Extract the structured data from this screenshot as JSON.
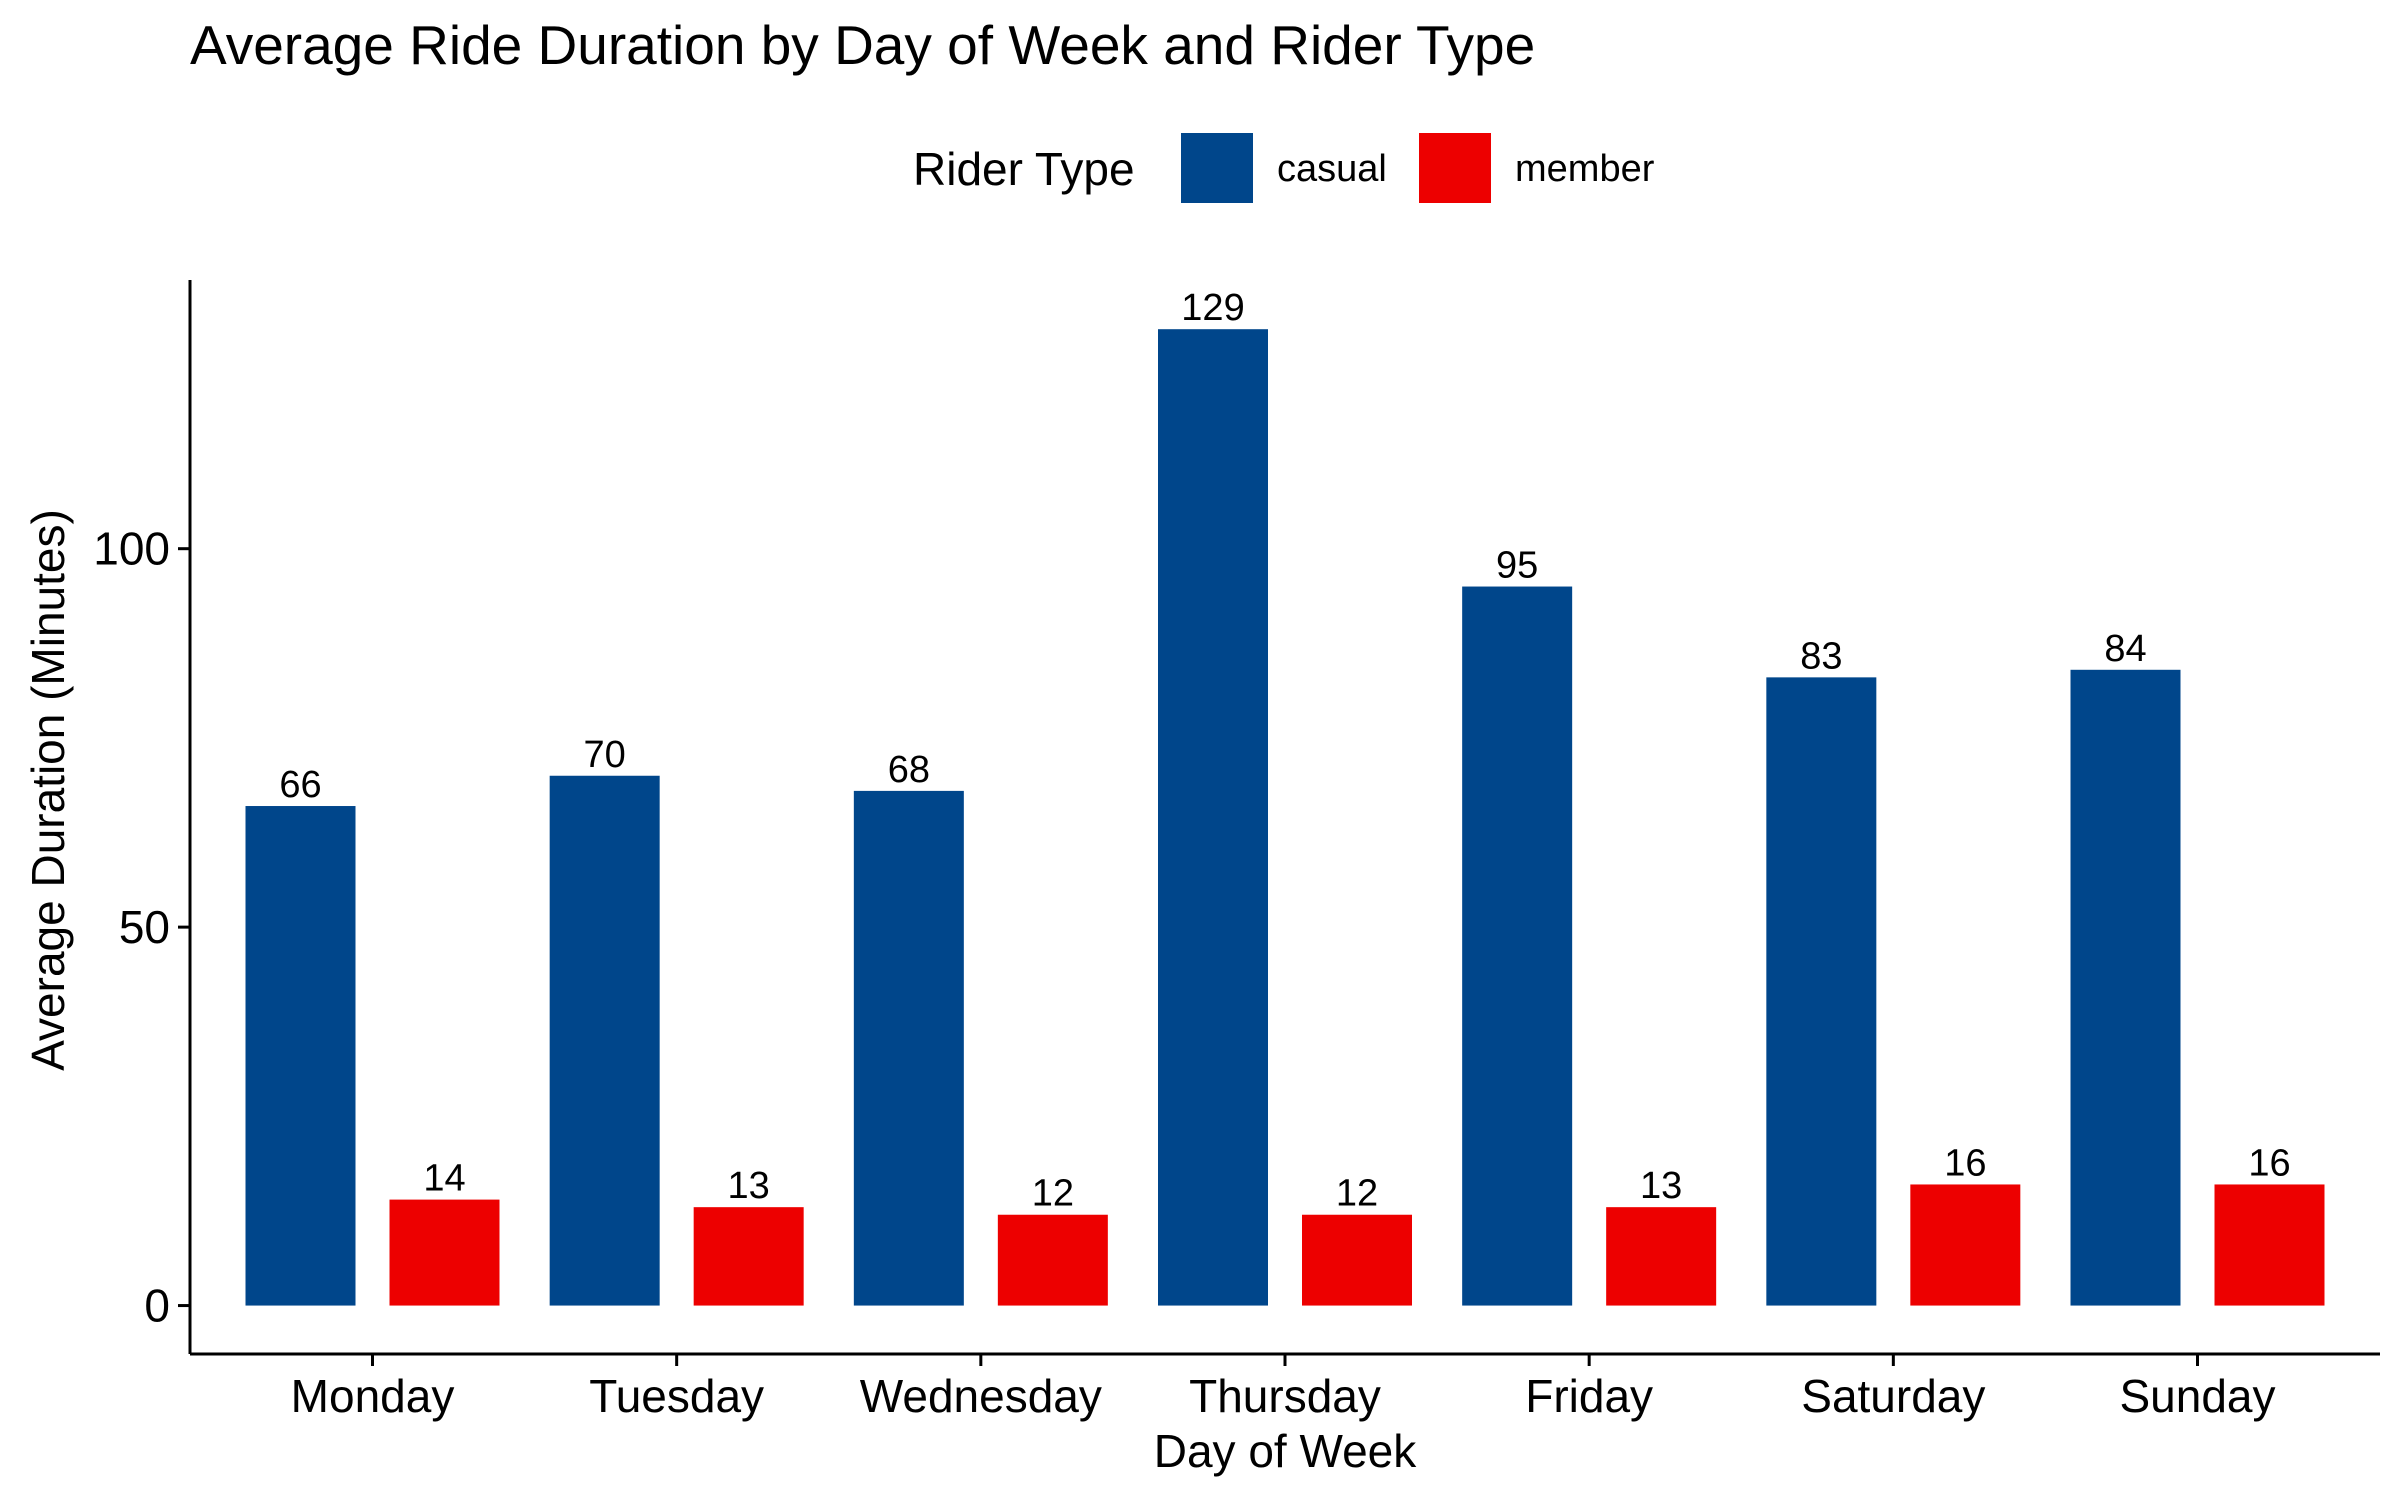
{
  "chart_data": {
    "type": "bar",
    "title": "Average Ride Duration by Day of Week and Rider Type",
    "xlabel": "Day of Week",
    "ylabel": "Average Duration (Minutes)",
    "categories": [
      "Monday",
      "Tuesday",
      "Wednesday",
      "Thursday",
      "Friday",
      "Saturday",
      "Sunday"
    ],
    "series": [
      {
        "name": "casual",
        "color": "#00468b",
        "values": [
          66,
          70,
          68,
          129,
          95,
          83,
          84
        ]
      },
      {
        "name": "member",
        "color": "#ed0000",
        "values": [
          14,
          13,
          12,
          12,
          13,
          16,
          16
        ]
      }
    ],
    "data_labels": [
      [
        "66",
        "70",
        "68",
        "129",
        "95",
        "83",
        "84"
      ],
      [
        "14",
        "13",
        "12",
        "12",
        "13",
        "16",
        "16"
      ]
    ],
    "yticks": [
      0,
      50,
      100
    ],
    "ylim": [
      -6.4,
      135.5
    ],
    "legend": {
      "title": "Rider Type",
      "position": "top"
    },
    "grid": false
  }
}
